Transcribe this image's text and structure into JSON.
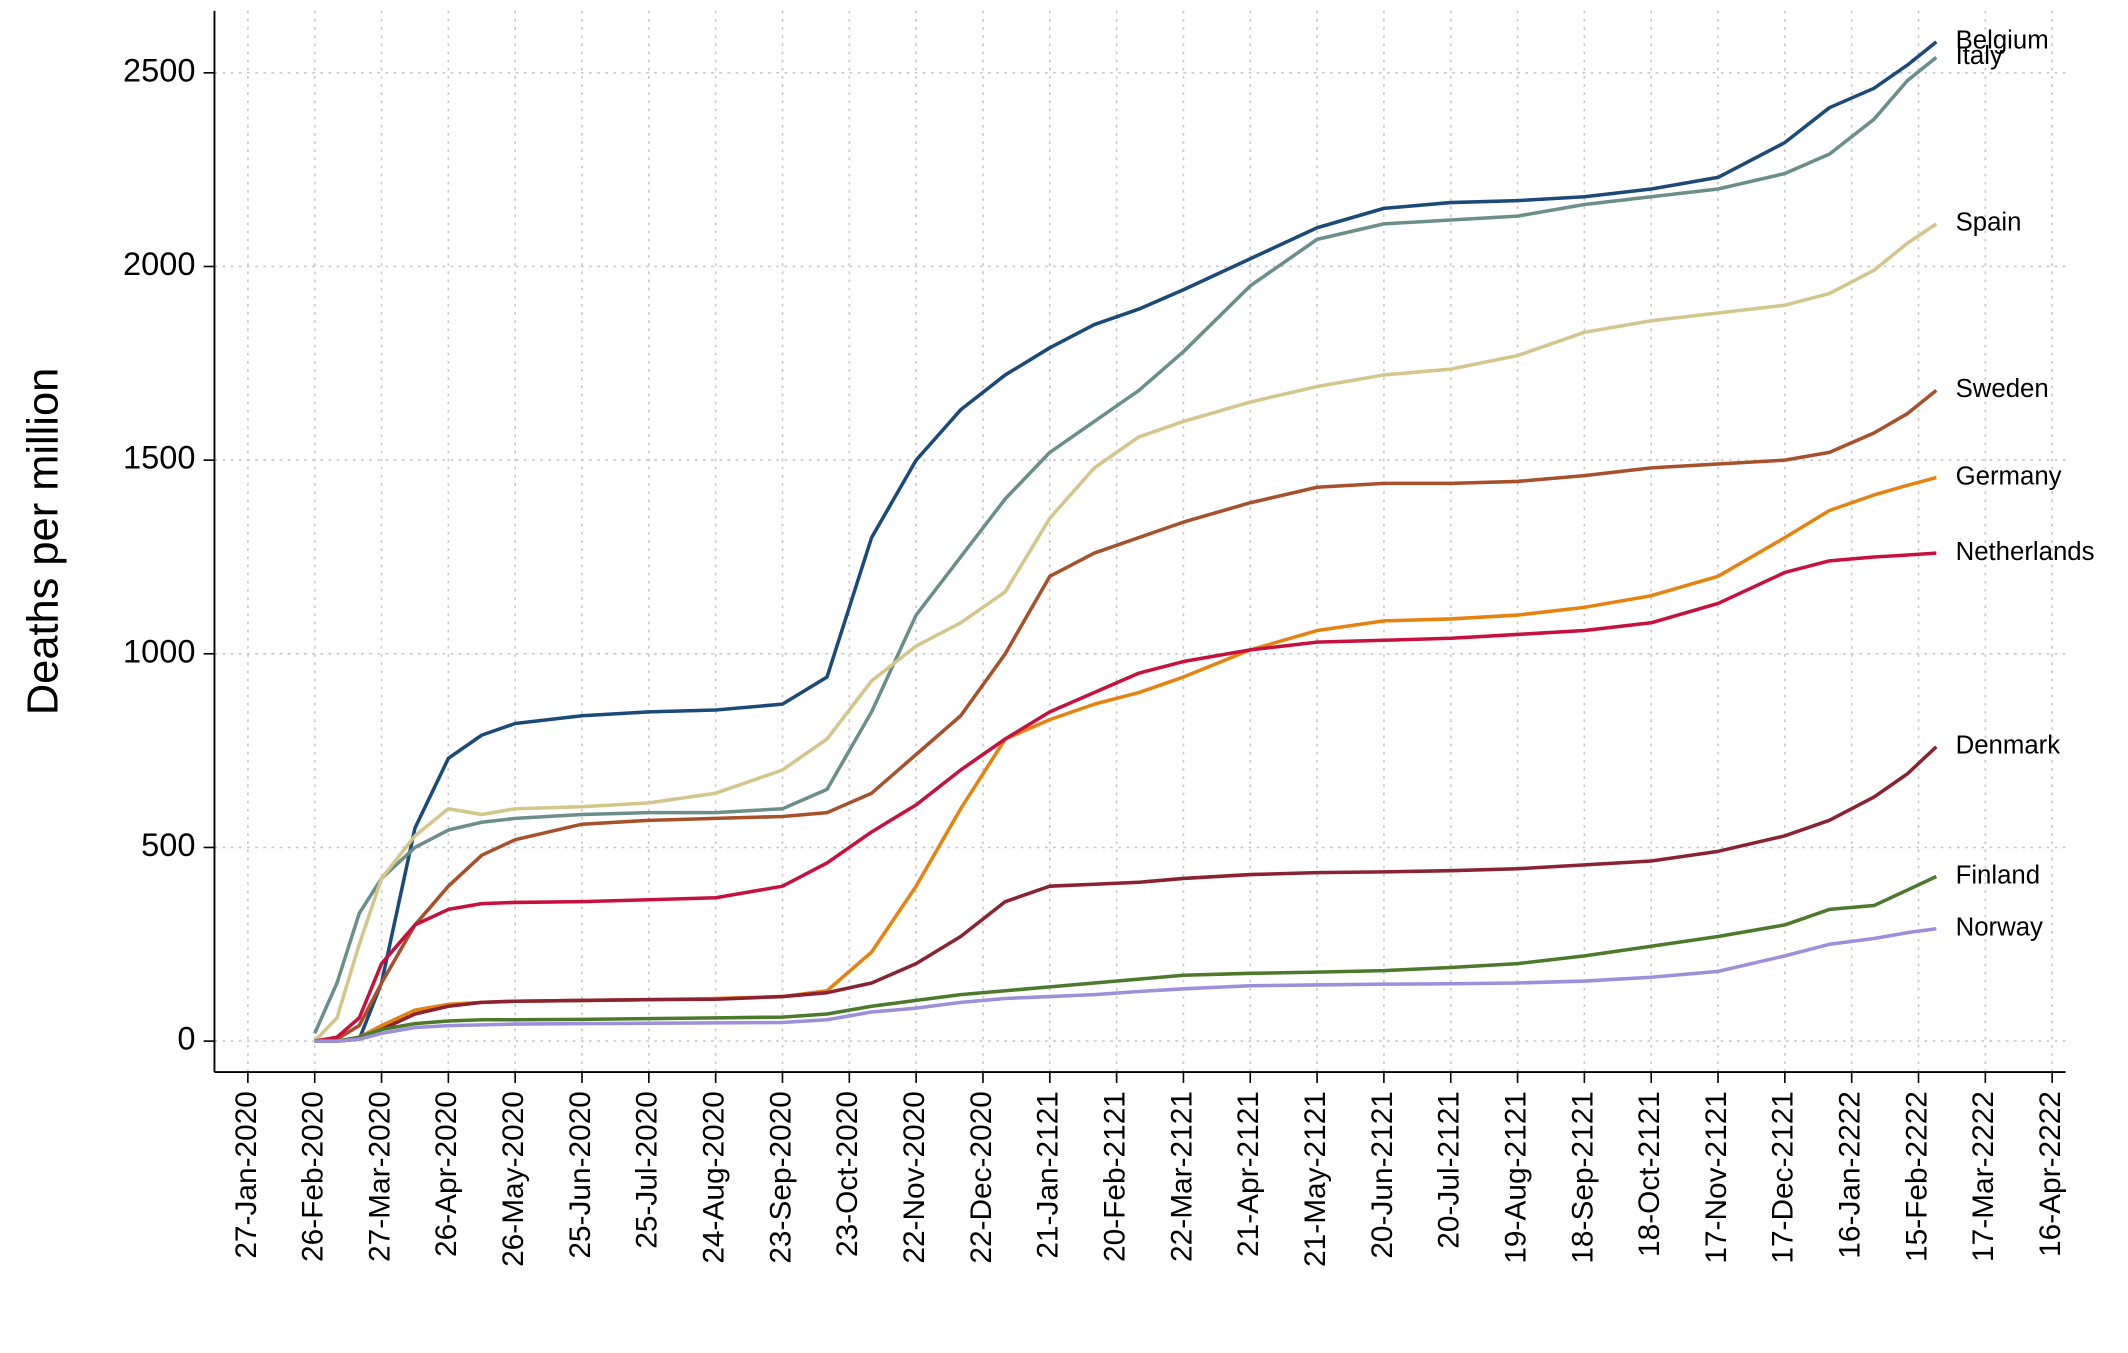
{
  "chart_data": {
    "type": "line",
    "y_label": "Deaths per million",
    "grid": true,
    "legend": "line-end",
    "xlim": [
      -15,
      816
    ],
    "ylim": [
      -80,
      2660
    ],
    "yticks": [
      0,
      500,
      1000,
      1500,
      2000,
      2500
    ],
    "xticks": [
      {
        "value": 0,
        "label": "27-Jan-2020"
      },
      {
        "value": 30,
        "label": "26-Feb-2020"
      },
      {
        "value": 60,
        "label": "27-Mar-2020"
      },
      {
        "value": 90,
        "label": "26-Apr-2020"
      },
      {
        "value": 120,
        "label": "26-May-2020"
      },
      {
        "value": 150,
        "label": "25-Jun-2020"
      },
      {
        "value": 180,
        "label": "25-Jul-2020"
      },
      {
        "value": 210,
        "label": "24-Aug-2020"
      },
      {
        "value": 240,
        "label": "23-Sep-2020"
      },
      {
        "value": 270,
        "label": "23-Oct-2020"
      },
      {
        "value": 300,
        "label": "22-Nov-2020"
      },
      {
        "value": 330,
        "label": "22-Dec-2020"
      },
      {
        "value": 360,
        "label": "21-Jan-2121"
      },
      {
        "value": 390,
        "label": "20-Feb-2121"
      },
      {
        "value": 420,
        "label": "22-Mar-2121"
      },
      {
        "value": 450,
        "label": "21-Apr-2121"
      },
      {
        "value": 480,
        "label": "21-May-2121"
      },
      {
        "value": 510,
        "label": "20-Jun-2121"
      },
      {
        "value": 540,
        "label": "20-Jul-2121"
      },
      {
        "value": 570,
        "label": "19-Aug-2121"
      },
      {
        "value": 600,
        "label": "18-Sep-2121"
      },
      {
        "value": 630,
        "label": "18-Oct-2121"
      },
      {
        "value": 660,
        "label": "17-Nov-2121"
      },
      {
        "value": 690,
        "label": "17-Dec-2121"
      },
      {
        "value": 720,
        "label": "16-Jan-2222"
      },
      {
        "value": 750,
        "label": "15-Feb-2222"
      },
      {
        "value": 780,
        "label": "17-Mar-2222"
      },
      {
        "value": 810,
        "label": "16-Apr-2222"
      }
    ],
    "x": [
      30,
      40,
      50,
      60,
      75,
      90,
      105,
      120,
      150,
      180,
      210,
      240,
      260,
      280,
      300,
      320,
      340,
      360,
      380,
      400,
      420,
      450,
      480,
      510,
      540,
      570,
      600,
      630,
      660,
      690,
      710,
      730,
      745,
      758
    ],
    "series": [
      {
        "name": "Belgium",
        "color": "#1a4a7a",
        "values": [
          0,
          0,
          5,
          150,
          550,
          730,
          790,
          820,
          840,
          850,
          855,
          870,
          940,
          1300,
          1500,
          1630,
          1720,
          1790,
          1850,
          1890,
          1940,
          2020,
          2100,
          2150,
          2165,
          2170,
          2180,
          2200,
          2230,
          2320,
          2410,
          2460,
          2520,
          2580
        ]
      },
      {
        "name": "Italy",
        "color": "#6a8f8a",
        "values": [
          20,
          150,
          330,
          420,
          500,
          545,
          565,
          575,
          585,
          590,
          590,
          600,
          650,
          850,
          1100,
          1250,
          1400,
          1520,
          1600,
          1680,
          1780,
          1950,
          2070,
          2110,
          2120,
          2130,
          2160,
          2180,
          2200,
          2240,
          2290,
          2380,
          2480,
          2540
        ]
      },
      {
        "name": "Spain",
        "color": "#d4c68a",
        "values": [
          0,
          60,
          250,
          420,
          530,
          600,
          585,
          600,
          605,
          615,
          640,
          700,
          780,
          930,
          1020,
          1080,
          1160,
          1350,
          1480,
          1560,
          1600,
          1650,
          1690,
          1720,
          1735,
          1770,
          1830,
          1860,
          1880,
          1900,
          1930,
          1990,
          2060,
          2110
        ]
      },
      {
        "name": "Sweden",
        "color": "#a8502a",
        "values": [
          0,
          5,
          40,
          150,
          300,
          400,
          480,
          520,
          560,
          570,
          575,
          580,
          590,
          640,
          740,
          840,
          1000,
          1200,
          1260,
          1300,
          1340,
          1390,
          1430,
          1440,
          1440,
          1445,
          1460,
          1480,
          1490,
          1500,
          1520,
          1570,
          1620,
          1680
        ]
      },
      {
        "name": "Germany",
        "color": "#e8820e",
        "values": [
          0,
          0,
          10,
          40,
          80,
          95,
          100,
          103,
          105,
          107,
          110,
          115,
          130,
          230,
          400,
          600,
          780,
          830,
          870,
          900,
          940,
          1010,
          1060,
          1085,
          1090,
          1100,
          1120,
          1150,
          1200,
          1300,
          1370,
          1410,
          1435,
          1455
        ]
      },
      {
        "name": "Netherlands",
        "color": "#c8103e",
        "values": [
          0,
          10,
          60,
          200,
          300,
          340,
          355,
          358,
          360,
          365,
          370,
          400,
          460,
          540,
          610,
          700,
          780,
          850,
          900,
          950,
          980,
          1010,
          1030,
          1035,
          1040,
          1050,
          1060,
          1080,
          1130,
          1210,
          1240,
          1250,
          1255,
          1260
        ]
      },
      {
        "name": "Denmark",
        "color": "#8b2232",
        "values": [
          0,
          0,
          5,
          30,
          70,
          90,
          100,
          103,
          105,
          107,
          108,
          115,
          125,
          150,
          200,
          270,
          360,
          400,
          405,
          410,
          420,
          430,
          435,
          437,
          440,
          445,
          455,
          465,
          490,
          530,
          570,
          630,
          690,
          760
        ]
      },
      {
        "name": "Finland",
        "color": "#4a7a2a",
        "values": [
          0,
          0,
          10,
          30,
          45,
          52,
          55,
          55,
          56,
          58,
          60,
          62,
          70,
          90,
          105,
          120,
          130,
          140,
          150,
          160,
          170,
          175,
          178,
          182,
          190,
          200,
          220,
          245,
          270,
          300,
          340,
          350,
          390,
          425
        ]
      },
      {
        "name": "Norway",
        "color": "#9d8fdc",
        "values": [
          0,
          0,
          5,
          20,
          35,
          40,
          42,
          44,
          45,
          46,
          47,
          48,
          55,
          75,
          85,
          100,
          110,
          115,
          120,
          128,
          135,
          143,
          145,
          147,
          148,
          150,
          155,
          165,
          180,
          220,
          250,
          265,
          280,
          290
        ]
      }
    ]
  }
}
